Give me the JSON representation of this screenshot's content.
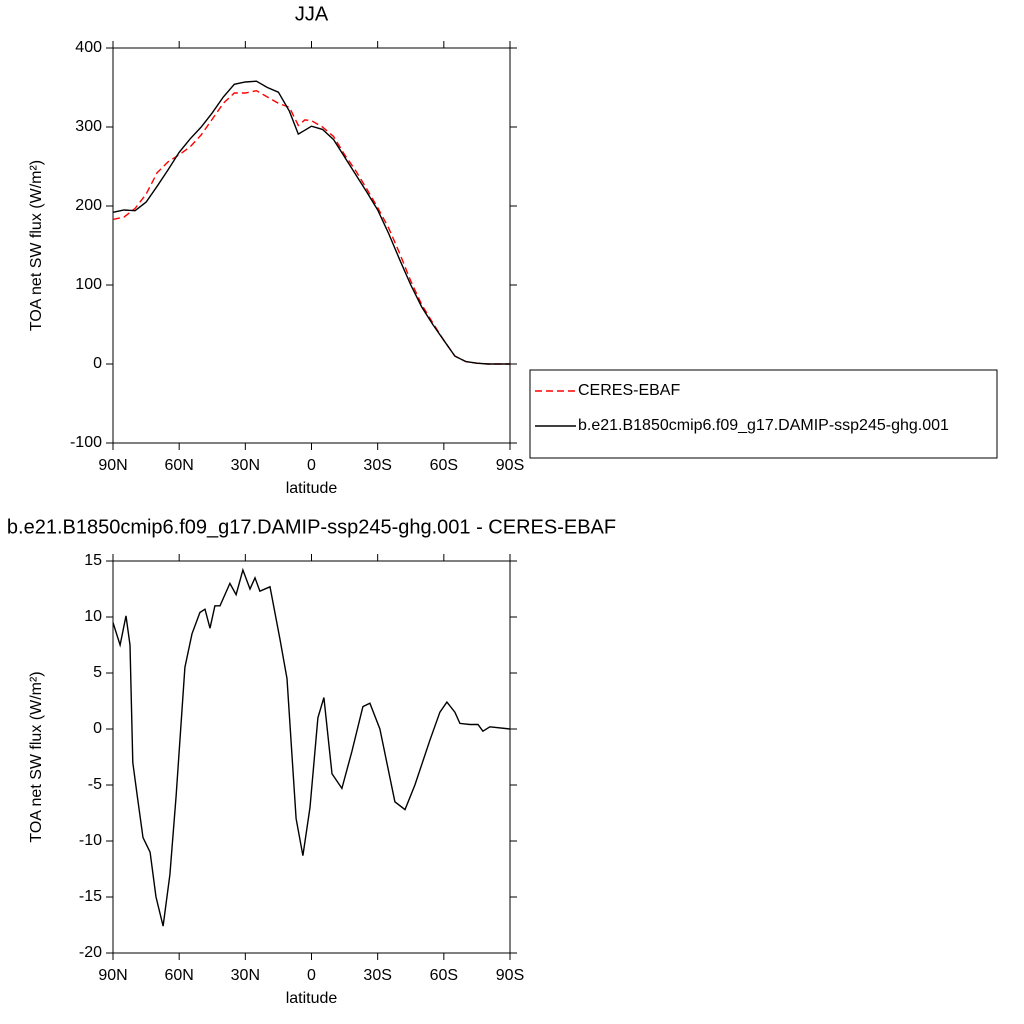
{
  "chart_data": [
    {
      "type": "line",
      "title": "JJA",
      "xlabel": "latitude",
      "ylabel": "TOA net SW flux (W/m²)",
      "x": [
        90,
        85,
        80,
        75,
        70,
        65,
        60,
        55,
        50,
        45,
        40,
        35,
        30,
        25,
        20,
        15,
        10,
        6,
        3,
        0,
        -5,
        -10,
        -15,
        -20,
        -25,
        -30,
        -35,
        -40,
        -45,
        -50,
        -55,
        -60,
        -65,
        -70,
        -75,
        -80,
        -90
      ],
      "xlim": [
        90,
        -90
      ],
      "xticks": [
        {
          "value": 90,
          "label": "90N"
        },
        {
          "value": 60,
          "label": "60N"
        },
        {
          "value": 30,
          "label": "30N"
        },
        0,
        {
          "value": -30,
          "label": "30S"
        },
        {
          "value": -60,
          "label": "60S"
        },
        {
          "value": -90,
          "label": "90S"
        }
      ],
      "ylim": [
        -100,
        400
      ],
      "yticks": [
        -100,
        0,
        100,
        200,
        300,
        400
      ],
      "legend": "right",
      "series": [
        {
          "name": "CERES-EBAF",
          "color": "#ff0000",
          "line_style": "dashed",
          "values": [
            183,
            186,
            197,
            215,
            242,
            256,
            265,
            275,
            290,
            310,
            330,
            343,
            343,
            346,
            338,
            330,
            325,
            302,
            309,
            308,
            300,
            288,
            265,
            245,
            222,
            198,
            172,
            140,
            105,
            75,
            52,
            30,
            10,
            3,
            1,
            0,
            0
          ]
        },
        {
          "name": "b.e21.B1850cmip6.f09_g17.DAMIP-ssp245-ghg.001",
          "color": "#000000",
          "line_style": "solid",
          "values": [
            192,
            195,
            194,
            205,
            225,
            246,
            268,
            285,
            300,
            318,
            338,
            354,
            357,
            358,
            350,
            344,
            320,
            291,
            296,
            301,
            297,
            284,
            262,
            240,
            218,
            195,
            165,
            132,
            100,
            72,
            50,
            30,
            10,
            3,
            1,
            0,
            0
          ]
        }
      ]
    },
    {
      "type": "line",
      "title": "b.e21.B1850cmip6.f09_g17.DAMIP-ssp245-ghg.001 - CERES-EBAF",
      "xlabel": "latitude",
      "ylabel": "TOA net SW flux (W/m²)",
      "x": [
        90,
        86.8,
        84.1,
        82.3,
        81,
        79,
        76.4,
        73.2,
        70.5,
        67.3,
        64.2,
        61.4,
        57.4,
        54.2,
        50.6,
        48.3,
        46,
        43.8,
        41.5,
        37,
        34.2,
        31.1,
        27.9,
        25.6,
        23.4,
        18.8,
        14.3,
        11.1,
        7,
        3.9,
        0.7,
        -2.9,
        -5.6,
        -9.3,
        -13.8,
        -18.3,
        -23.3,
        -26.5,
        -31,
        -37.8,
        -42.4,
        -46.9,
        -53.7,
        -58.2,
        -61.4,
        -65,
        -67.3,
        -71.8,
        -75.5,
        -77.7,
        -80.9,
        -90
      ],
      "xlim": [
        90,
        -90
      ],
      "xticks": [
        {
          "value": 90,
          "label": "90N"
        },
        {
          "value": 60,
          "label": "60N"
        },
        {
          "value": 30,
          "label": "30N"
        },
        0,
        {
          "value": -30,
          "label": "30S"
        },
        {
          "value": -60,
          "label": "60S"
        },
        {
          "value": -90,
          "label": "90S"
        }
      ],
      "ylim": [
        -20,
        15
      ],
      "yticks": [
        -20,
        -15,
        -10,
        -5,
        0,
        5,
        10,
        15
      ],
      "color": "#000000",
      "values": [
        9.5,
        7.5,
        10.1,
        7.5,
        -3,
        -6,
        -9.7,
        -11,
        -15,
        -17.6,
        -13,
        -6,
        5.5,
        8.5,
        10.4,
        10.7,
        9,
        11,
        11,
        13,
        12,
        14.2,
        12.5,
        13.5,
        12.3,
        12.7,
        8,
        4.5,
        -8,
        -11.3,
        -7,
        1,
        2.8,
        -4,
        -5.3,
        -2,
        2,
        2.3,
        0,
        -6.5,
        -7.2,
        -5,
        -1,
        1.5,
        2.4,
        1.5,
        0.5,
        0.4,
        0.4,
        -0.2,
        0.2,
        0
      ]
    }
  ]
}
